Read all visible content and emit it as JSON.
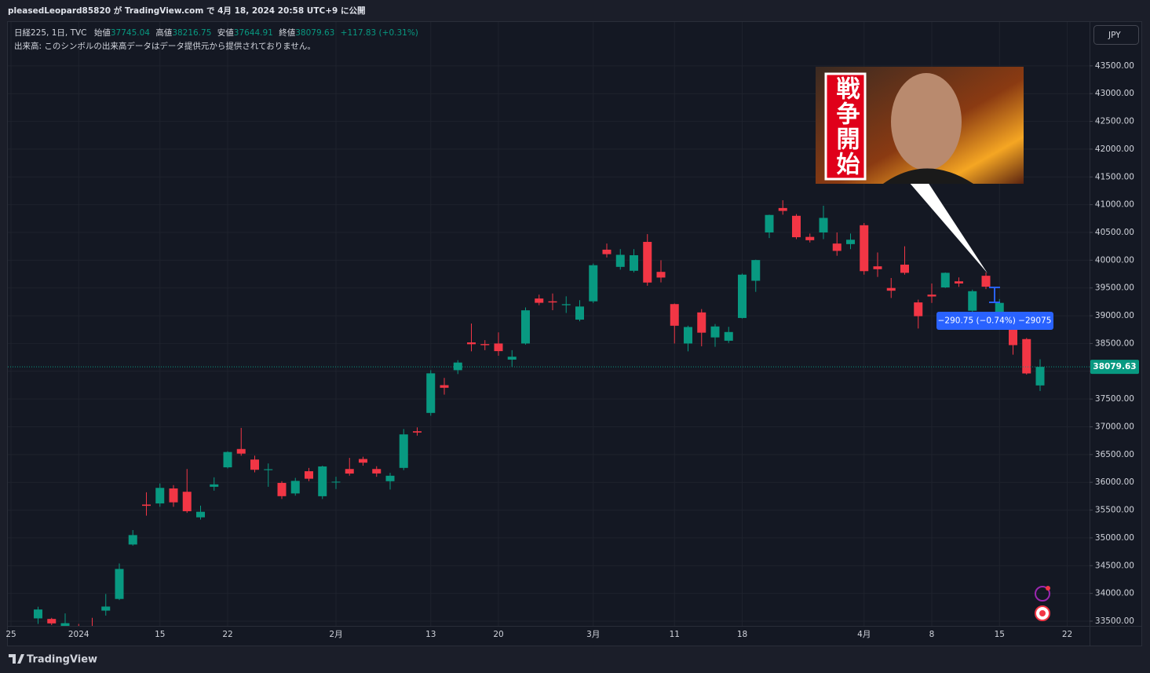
{
  "header": {
    "publish_line": "pleasedLeopard85820 が TradingView.com で 4月 18, 2024 20:58 UTC+9 に公開"
  },
  "chart_data": {
    "type": "candlestick",
    "symbol": "日経225, 1日, TVC",
    "legend_labels": {
      "open": "始値",
      "high": "高値",
      "low": "安値",
      "close": "終値"
    },
    "change": "+117.83 (+0.31%)",
    "volume_note": "出来高: このシンボルの出来高データはデータ提供元から提供されておりません。",
    "currency": "JPY",
    "up_color": "#089981",
    "down_color": "#f23645",
    "grid": true,
    "categories": [
      "25",
      null,
      null,
      null,
      null,
      "2024",
      null,
      null,
      null,
      null,
      null,
      "15",
      null,
      null,
      null,
      null,
      "22",
      null,
      null,
      null,
      null,
      null,
      null,
      null,
      "2月",
      null,
      null,
      null,
      null,
      null,
      null,
      "13",
      null,
      null,
      null,
      null,
      "20",
      null,
      null,
      null,
      null,
      null,
      null,
      "3月",
      null,
      null,
      null,
      null,
      null,
      "11",
      null,
      null,
      null,
      null,
      "18",
      null,
      null,
      null,
      null,
      null,
      null,
      null,
      null,
      "4月",
      null,
      null,
      null,
      null,
      "8",
      null,
      null,
      null,
      null,
      "15",
      null,
      null,
      null,
      null,
      "22"
    ],
    "open": [
      null,
      null,
      33550,
      33540,
      33400,
      33300,
      33400,
      33690,
      33900,
      34880,
      35600,
      35620,
      35890,
      35830,
      35370,
      35920,
      36270,
      36600,
      36410,
      36220,
      35990,
      35800,
      36200,
      35750,
      36000,
      36240,
      36420,
      36240,
      36020,
      36260,
      36920,
      37250,
      37750,
      38020,
      38520,
      38490,
      38500,
      38210,
      38500,
      39310,
      39260,
      39190,
      38930,
      39260,
      40190,
      39880,
      39810,
      40330,
      39790,
      39210,
      38500,
      39060,
      38610,
      38550,
      38960,
      39630,
      40500,
      40940,
      40800,
      40420,
      40500,
      40300,
      40290,
      40630,
      39890,
      39500,
      39920,
      39240,
      39380,
      39510,
      39620,
      39090,
      39720,
      38900,
      38930,
      38580,
      37745.04,
      null,
      null
    ],
    "high": [
      null,
      null,
      33760,
      33560,
      33640,
      33450,
      33560,
      33990,
      34540,
      35140,
      35820,
      35980,
      35950,
      36240,
      35580,
      36090,
      36560,
      36980,
      36480,
      36340,
      36020,
      36080,
      36260,
      36300,
      36100,
      36440,
      36460,
      36290,
      36170,
      36960,
      36990,
      38020,
      37880,
      38200,
      38860,
      38560,
      38700,
      38380,
      39150,
      39380,
      39400,
      39350,
      39280,
      39940,
      40300,
      40200,
      40200,
      40470,
      40000,
      39220,
      38820,
      39120,
      38850,
      38800,
      39760,
      40010,
      40820,
      41080,
      40830,
      40480,
      40980,
      40500,
      40480,
      40670,
      40140,
      39680,
      40250,
      39290,
      39580,
      39780,
      39690,
      39470,
      39780,
      39300,
      38950,
      38600,
      38216.75,
      null,
      null
    ],
    "low": [
      null,
      null,
      33450,
      33430,
      33300,
      33100,
      33300,
      33600,
      33880,
      34860,
      35400,
      35560,
      35560,
      35450,
      35330,
      35850,
      36250,
      36480,
      36180,
      35920,
      35700,
      35760,
      36020,
      35700,
      35880,
      36120,
      36300,
      36100,
      35870,
      36220,
      36840,
      37200,
      37580,
      37950,
      38360,
      38380,
      38280,
      38080,
      38480,
      39190,
      39100,
      39050,
      38900,
      39230,
      40050,
      39830,
      39780,
      39540,
      39600,
      38500,
      38360,
      38450,
      38440,
      38510,
      38950,
      39430,
      40400,
      40820,
      40380,
      40320,
      40380,
      40080,
      40200,
      39740,
      39700,
      39320,
      39740,
      38770,
      39230,
      39500,
      39520,
      39060,
      39480,
      38880,
      38300,
      37940,
      37644.91,
      null,
      null
    ],
    "close": [
      null,
      null,
      33710,
      33460,
      33464,
      33288,
      33377,
      33763,
      34440,
      35050,
      35577,
      35900,
      35640,
      35480,
      35470,
      35963,
      36546,
      36517,
      36226,
      36236,
      35751,
      36026,
      36065,
      36286,
      36011,
      36158,
      36354,
      36160,
      36119,
      36863,
      36897,
      37963,
      37703,
      38157,
      38487,
      38470,
      38363,
      38262,
      39098,
      39233,
      39239,
      39208,
      39166,
      39910,
      40109,
      40097,
      40090,
      39598,
      39688,
      38820,
      38797,
      38695,
      38807,
      38707,
      39740,
      40003,
      40815,
      40888,
      40414,
      40360,
      40762,
      40168,
      40369,
      39803,
      39838,
      39451,
      39773,
      38992,
      39347,
      39773,
      39581,
      39442,
      39523,
      39232,
      38471,
      37961,
      38079.63,
      null,
      null
    ],
    "ylim": [
      33415,
      44290
    ],
    "yticks": [
      {
        "value": 33500,
        "label": "33500.00"
      },
      {
        "value": 34000,
        "label": "34000.00"
      },
      {
        "value": 34500,
        "label": "34500.00"
      },
      {
        "value": 35000,
        "label": "35000.00"
      },
      {
        "value": 35500,
        "label": "35500.00"
      },
      {
        "value": 36000,
        "label": "36000.00"
      },
      {
        "value": 36500,
        "label": "36500.00"
      },
      {
        "value": 37000,
        "label": "37000.00"
      },
      {
        "value": 37500,
        "label": "37500.00"
      },
      {
        "value": 38000,
        "label": "38000.00"
      },
      {
        "value": 38500,
        "label": "38500.00"
      },
      {
        "value": 39000,
        "label": "39000.00"
      },
      {
        "value": 39500,
        "label": "39500.00"
      },
      {
        "value": 40000,
        "label": "40000.00"
      },
      {
        "value": 40500,
        "label": "40500.00"
      },
      {
        "value": 41000,
        "label": "41000.00"
      },
      {
        "value": 41500,
        "label": "41500.00"
      },
      {
        "value": 42000,
        "label": "42000.00"
      },
      {
        "value": 42500,
        "label": "42500.00"
      },
      {
        "value": 43000,
        "label": "43000.00"
      },
      {
        "value": 43500,
        "label": "43500.00"
      }
    ],
    "annotations": {
      "measure": "−290.75 (−0.74%) −29075",
      "thumbnail_text": "戦争開始"
    }
  },
  "footer": {
    "brand": "TradingView"
  }
}
